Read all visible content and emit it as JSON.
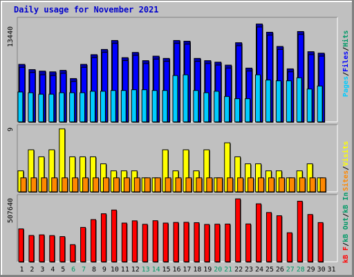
{
  "title": "Daily usage for November 2021",
  "colors": {
    "background": "#c0c0c0",
    "panel": "#c0c0c0",
    "title": "#0000cc",
    "pages": "#00ccff",
    "files": "#0000ff",
    "hits": "#009966",
    "visits": "#ffff00",
    "sites": "#ff8800",
    "kb_in": "#009966",
    "kb_out": "#009966",
    "kb_f": "#ff0000",
    "weekend_day": "#009966",
    "weekday": "#000000"
  },
  "chart_data": [
    {
      "type": "bar",
      "name": "hits-files-pages",
      "categories": [
        "1",
        "2",
        "3",
        "4",
        "5",
        "6",
        "7",
        "8",
        "9",
        "10",
        "11",
        "12",
        "13",
        "14",
        "15",
        "16",
        "17",
        "18",
        "19",
        "20",
        "21",
        "22",
        "23",
        "24",
        "25",
        "26",
        "27",
        "28",
        "29",
        "30",
        "31"
      ],
      "ymax_label": "13440",
      "ylim": [
        0,
        13440
      ],
      "series": [
        {
          "name": "Hits",
          "values": [
            7700,
            7000,
            6800,
            6700,
            6900,
            5800,
            7700,
            9000,
            9700,
            10900,
            8600,
            9300,
            8200,
            8800,
            8500,
            10900,
            10800,
            8500,
            8200,
            8000,
            7600,
            10600,
            7200,
            13100,
            12000,
            10100,
            7100,
            12100,
            9400,
            9200,
            null
          ]
        },
        {
          "name": "Files",
          "values": [
            7300,
            6600,
            6300,
            6200,
            6500,
            5400,
            7300,
            8600,
            9300,
            10500,
            8200,
            8900,
            7800,
            8400,
            8100,
            10500,
            10400,
            8100,
            7800,
            7600,
            7200,
            10200,
            6800,
            12700,
            11600,
            9700,
            6700,
            11700,
            9000,
            8800,
            null
          ]
        },
        {
          "name": "Pages",
          "values": [
            4000,
            3900,
            3700,
            3700,
            3900,
            3900,
            3900,
            4100,
            4100,
            4200,
            4200,
            4300,
            4300,
            4200,
            4200,
            6200,
            6300,
            4200,
            3900,
            4100,
            3400,
            3100,
            3100,
            6300,
            5600,
            5500,
            5500,
            5900,
            4400,
            4800,
            null
          ]
        }
      ],
      "axis_title_parts": [
        "Pages",
        "Files",
        "Hits"
      ]
    },
    {
      "type": "bar",
      "name": "visits-sites",
      "categories": [
        "1",
        "2",
        "3",
        "4",
        "5",
        "6",
        "7",
        "8",
        "9",
        "10",
        "11",
        "12",
        "13",
        "14",
        "15",
        "16",
        "17",
        "18",
        "19",
        "20",
        "21",
        "22",
        "23",
        "24",
        "25",
        "26",
        "27",
        "28",
        "29",
        "30",
        "31"
      ],
      "ymax_label": "9",
      "ylim": [
        0,
        9
      ],
      "series": [
        {
          "name": "Visits",
          "values": [
            3,
            6,
            5,
            6,
            9,
            5,
            5,
            5,
            4,
            3,
            3,
            3,
            2,
            2,
            6,
            3,
            6,
            3,
            6,
            2,
            7,
            5,
            4,
            4,
            3,
            3,
            2,
            3,
            4,
            2,
            null
          ]
        },
        {
          "name": "Sites",
          "values": [
            2,
            2,
            2,
            2,
            2,
            2,
            2,
            2,
            2,
            2,
            2,
            2,
            2,
            2,
            2,
            2,
            2,
            2,
            2,
            2,
            2,
            2,
            2,
            2,
            2,
            2,
            2,
            2,
            2,
            2,
            null
          ]
        }
      ],
      "axis_title_parts": [
        "Sites",
        "Visits"
      ]
    },
    {
      "type": "bar",
      "name": "kbytes",
      "categories": [
        "1",
        "2",
        "3",
        "4",
        "5",
        "6",
        "7",
        "8",
        "9",
        "10",
        "11",
        "12",
        "13",
        "14",
        "15",
        "16",
        "17",
        "18",
        "19",
        "20",
        "21",
        "22",
        "23",
        "24",
        "25",
        "26",
        "27",
        "28",
        "29",
        "30",
        "31"
      ],
      "ymax_label": "507640",
      "ylim": [
        0,
        507640
      ],
      "series": [
        {
          "name": "kB F",
          "values": [
            265000,
            212000,
            217000,
            211000,
            203000,
            138000,
            277000,
            340000,
            387000,
            417000,
            312000,
            330000,
            302000,
            331000,
            312000,
            317000,
            318000,
            315000,
            301000,
            303000,
            304000,
            507000,
            305000,
            467000,
            397000,
            371000,
            234000,
            488000,
            381000,
            316000,
            null
          ]
        }
      ],
      "axis_title_parts": [
        "kB F",
        "kB Out",
        "kB In"
      ]
    }
  ],
  "x_labels_weekend": [
    "6",
    "7",
    "13",
    "14",
    "20",
    "21",
    "27",
    "28"
  ],
  "legend": {
    "top": [
      {
        "text": "Pages",
        "color": "#00ccff"
      },
      {
        "text": "/",
        "color": "#000000"
      },
      {
        "text": "Files",
        "color": "#0000ff"
      },
      {
        "text": "/",
        "color": "#000000"
      },
      {
        "text": "Hits",
        "color": "#009966"
      }
    ],
    "middle": [
      {
        "text": "Sites",
        "color": "#ff8800"
      },
      {
        "text": "/",
        "color": "#000000"
      },
      {
        "text": "Visits",
        "color": "#ffff00"
      }
    ],
    "bottom": [
      {
        "text": "kB F",
        "color": "#ff0000"
      },
      {
        "text": "/",
        "color": "#000000"
      },
      {
        "text": "kB Out",
        "color": "#009966"
      },
      {
        "text": "/",
        "color": "#000000"
      },
      {
        "text": "kB In",
        "color": "#009966"
      }
    ]
  }
}
